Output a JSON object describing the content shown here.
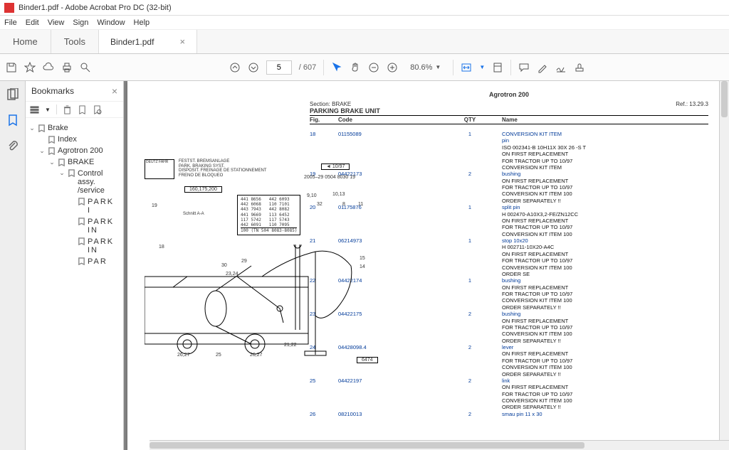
{
  "window": {
    "title": "Binder1.pdf - Adobe Acrobat Pro DC (32-bit)"
  },
  "menu": {
    "file": "File",
    "edit": "Edit",
    "view": "View",
    "sign": "Sign",
    "window": "Window",
    "help": "Help"
  },
  "tabs": {
    "home": "Home",
    "tools": "Tools",
    "doc": "Binder1.pdf"
  },
  "toolbar": {
    "page_current": "5",
    "page_total": "/ 607",
    "zoom": "80.6%"
  },
  "bookmarks_panel": {
    "title": "Bookmarks",
    "tree": {
      "brake": "Brake",
      "index": "Index",
      "agrotron": "Agrotron 200",
      "brake2": "BRAKE",
      "control": "Control assy. /service",
      "p1": "PARKI",
      "p2": "PARKIN",
      "p3": "PARKIN",
      "p4": "PAR"
    }
  },
  "doc": {
    "model": "Agrotron 200",
    "section": "Section: BRAKE",
    "ref": "Ref.: 13.29.3",
    "title": "PARKING BRAKE UNIT",
    "col_fig": "Fig.",
    "col_code": "Code",
    "col_qty": "QTY",
    "col_name": "Name",
    "diagram": {
      "logo": "DEUTZ FAHR",
      "txt1": "FESTST. BREMSANLAGE\nPARK. BRAKING SYST.\nDISPOSIT. FREINAGE DE STATIONNEMENT\nFRENO DE BLOQUEO",
      "date": "10/97",
      "hdrnum": "2005–29  0504 8030 19",
      "sizes": "160,175,200",
      "schnitt": "Schnitt A-A",
      "pnbox": "441 8656   442 6093\n442 6068   110 7101\n443 7943   442 8082\n441 9669   113 6452\n117 5742   117 5743\n442 6091   110 7095",
      "pnfoot": "100 (TN 504 8083-8085)",
      "tag": "6474"
    },
    "parts": [
      {
        "fig": "18",
        "code": "01155089",
        "qty": "1",
        "name": "CONVERSION KIT ITEM\npin",
        "notes": "ISO 002341-B 10H11X 30X 26 -S T\nON FIRST REPLACEMENT\nFOR TRACTOR UP TO 10/97\nCONVERSION KIT ITEM"
      },
      {
        "fig": "19",
        "code": "04422173",
        "qty": "2",
        "name": "bushing",
        "notes": "ON FIRST REPLACEMENT\nFOR TRACTOR UP TO 10/97\nCONVERSION KIT ITEM 100\nORDER SEPARATELY !!"
      },
      {
        "fig": "20",
        "code": "01175876",
        "qty": "1",
        "name": "split pin",
        "notes": "H 002470-A10X3,2-FE/ZN12CC\nON FIRST REPLACEMENT\nFOR TRACTOR UP TO 10/97\nCONVERSION KIT ITEM 100"
      },
      {
        "fig": "21",
        "code": "06214973",
        "qty": "1",
        "name": "stop 10x20",
        "notes": "H 002711-10X20-A4C\nON FIRST REPLACEMENT\nFOR TRACTOR UP TO 10/97\nCONVERSION KIT ITEM 100\nORDER SE"
      },
      {
        "fig": "22",
        "code": "04422174",
        "qty": "1",
        "name": "bushing",
        "notes": "ON FIRST REPLACEMENT\nFOR TRACTOR UP TO 10/97\nCONVERSION KIT ITEM 100\nORDER SEPARATELY !!"
      },
      {
        "fig": "23",
        "code": "04422175",
        "qty": "2",
        "name": "bushing",
        "notes": "ON FIRST REPLACEMENT\nFOR TRACTOR UP TO 10/97\nCONVERSION KIT ITEM 100\nORDER SEPARATELY !!"
      },
      {
        "fig": "24",
        "code": "04428098.4",
        "qty": "2",
        "name": "lever",
        "notes": "ON FIRST REPLACEMENT\nFOR TRACTOR UP TO 10/97\nCONVERSION KIT ITEM 100\nORDER SEPARATELY !!"
      },
      {
        "fig": "25",
        "code": "04422197",
        "qty": "2",
        "name": "link",
        "notes": "ON FIRST REPLACEMENT\nFOR TRACTOR UP TO 10/97\nCONVERSION KIT ITEM 100\nORDER SEPARATELY !!"
      },
      {
        "fig": "26",
        "code": "08210013",
        "qty": "2",
        "name": "smau pin 11 x 30",
        "notes": ""
      }
    ]
  }
}
